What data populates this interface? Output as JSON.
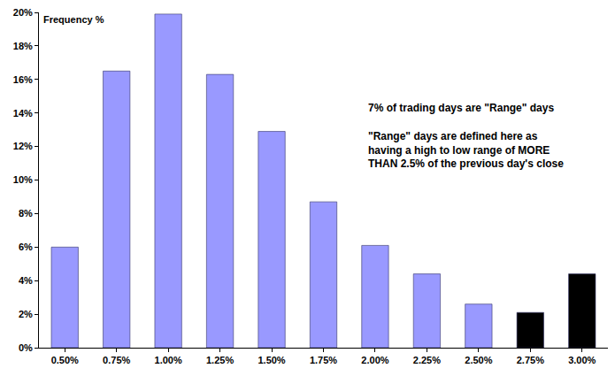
{
  "chart_data": {
    "type": "bar",
    "categories": [
      "0.50%",
      "0.75%",
      "1.00%",
      "1.25%",
      "1.50%",
      "1.75%",
      "2.00%",
      "2.25%",
      "2.50%",
      "2.75%",
      "3.00%"
    ],
    "values": [
      6.0,
      16.5,
      19.9,
      16.3,
      12.9,
      8.7,
      6.1,
      4.4,
      2.6,
      2.1,
      4.4
    ],
    "colors": [
      "#9999ff",
      "#9999ff",
      "#9999ff",
      "#9999ff",
      "#9999ff",
      "#9999ff",
      "#9999ff",
      "#9999ff",
      "#9999ff",
      "#000000",
      "#000000"
    ],
    "ylim": [
      0,
      20
    ],
    "yticks": [
      {
        "value": 0,
        "label": "0%"
      },
      {
        "value": 2,
        "label": "2%"
      },
      {
        "value": 4,
        "label": "4%"
      },
      {
        "value": 6,
        "label": "6%"
      },
      {
        "value": 8,
        "label": "8%"
      },
      {
        "value": 10,
        "label": "10%"
      },
      {
        "value": 12,
        "label": "12%"
      },
      {
        "value": 14,
        "label": "14%"
      },
      {
        "value": 16,
        "label": "16%"
      },
      {
        "value": 18,
        "label": "18%"
      },
      {
        "value": 20,
        "label": "20%"
      }
    ],
    "grid": false,
    "annotations": [
      "Frequency %",
      "7% of trading days are \"Range\" days",
      "\"Range\" days are defined here as\nhaving a high to low range of MORE\nTHAN 2.5% of the previous day's close"
    ]
  }
}
